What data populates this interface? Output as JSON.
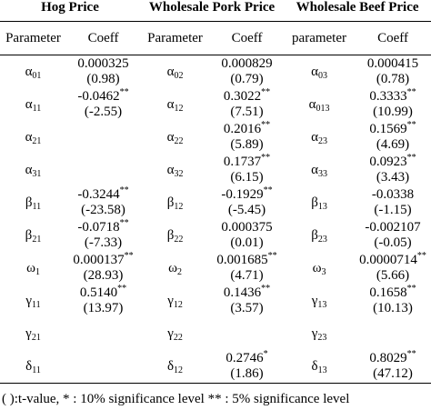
{
  "groups": [
    "Hog Price",
    "Wholesale Pork Price",
    "Wholesale Beef Price"
  ],
  "columns": [
    "Parameter",
    "Coeff",
    "Parameter",
    "Coeff",
    "parameter",
    "Coeff"
  ],
  "rows": [
    [
      {
        "sym": "α",
        "sub": "01",
        "val": "0.000325",
        "sig": "",
        "t": "(0.98)"
      },
      {
        "sym": "α",
        "sub": "02",
        "val": "0.000829",
        "sig": "",
        "t": "(0.79)"
      },
      {
        "sym": "α",
        "sub": "03",
        "val": "0.000415",
        "sig": "",
        "t": "(0.78)"
      }
    ],
    [
      {
        "sym": "α",
        "sub": "11",
        "val": "-0.0462",
        "sig": "**",
        "t": "(-2.55)"
      },
      {
        "sym": "α",
        "sub": "12",
        "val": "0.3022",
        "sig": "**",
        "t": "(7.51)"
      },
      {
        "sym": "α",
        "sub": "013",
        "val": "0.3333",
        "sig": "**",
        "t": "(10.99)"
      }
    ],
    [
      {
        "sym": "α",
        "sub": "21",
        "val": "",
        "sig": "",
        "t": ""
      },
      {
        "sym": "α",
        "sub": "22",
        "val": "0.2016",
        "sig": "**",
        "t": "(5.89)"
      },
      {
        "sym": "α",
        "sub": "23",
        "val": "0.1569",
        "sig": "**",
        "t": "(4.69)"
      }
    ],
    [
      {
        "sym": "α",
        "sub": "31",
        "val": "",
        "sig": "",
        "t": ""
      },
      {
        "sym": "α",
        "sub": "32",
        "val": "0.1737",
        "sig": "**",
        "t": "(6.15)"
      },
      {
        "sym": "α",
        "sub": "33",
        "val": "0.0923",
        "sig": "**",
        "t": "(3.43)"
      }
    ],
    [
      {
        "sym": "β",
        "sub": "11",
        "val": "-0.3244",
        "sig": "**",
        "t": "(-23.58)"
      },
      {
        "sym": "β",
        "sub": "12",
        "val": "-0.1929",
        "sig": "**",
        "t": "(-5.45)"
      },
      {
        "sym": "β",
        "sub": "13",
        "val": "-0.0338",
        "sig": "",
        "t": "(-1.15)"
      }
    ],
    [
      {
        "sym": "β",
        "sub": "21",
        "val": "-0.0718",
        "sig": "**",
        "t": "(-7.33)"
      },
      {
        "sym": "β",
        "sub": "22",
        "val": "0.000375",
        "sig": "",
        "t": "(0.01)"
      },
      {
        "sym": "β",
        "sub": "23",
        "val": "-0.002107",
        "sig": "",
        "t": "(-0.05)"
      }
    ],
    [
      {
        "sym": "ω",
        "sub": "1",
        "val": "0.000137",
        "sig": "**",
        "t": "(28.93)"
      },
      {
        "sym": "ω",
        "sub": "2",
        "val": "0.001685",
        "sig": "**",
        "t": "(4.71)"
      },
      {
        "sym": "ω",
        "sub": "3",
        "val": "0.0000714",
        "sig": "**",
        "t": "(5.66)"
      }
    ],
    [
      {
        "sym": "γ",
        "sub": "11",
        "val": "0.5140",
        "sig": "**",
        "t": "(13.97)"
      },
      {
        "sym": "γ",
        "sub": "12",
        "val": "0.1436",
        "sig": "**",
        "t": "(3.57)"
      },
      {
        "sym": "γ",
        "sub": "13",
        "val": "0.1658",
        "sig": "**",
        "t": "(10.13)"
      }
    ],
    [
      {
        "sym": "γ",
        "sub": "21",
        "val": "",
        "sig": "",
        "t": ""
      },
      {
        "sym": "γ",
        "sub": "22",
        "val": "",
        "sig": "",
        "t": ""
      },
      {
        "sym": "γ",
        "sub": "23",
        "val": "",
        "sig": "",
        "t": ""
      }
    ],
    [
      {
        "sym": "δ",
        "sub": "11",
        "val": "",
        "sig": "",
        "t": ""
      },
      {
        "sym": "δ",
        "sub": "12",
        "val": "0.2746",
        "sig": "*",
        "t": "(1.86)"
      },
      {
        "sym": "δ",
        "sub": "13",
        "val": "0.8029",
        "sig": "**",
        "t": "(47.12)"
      }
    ]
  ],
  "note": "( ):t-value, * : 10% significance level ** : 5% significance level"
}
